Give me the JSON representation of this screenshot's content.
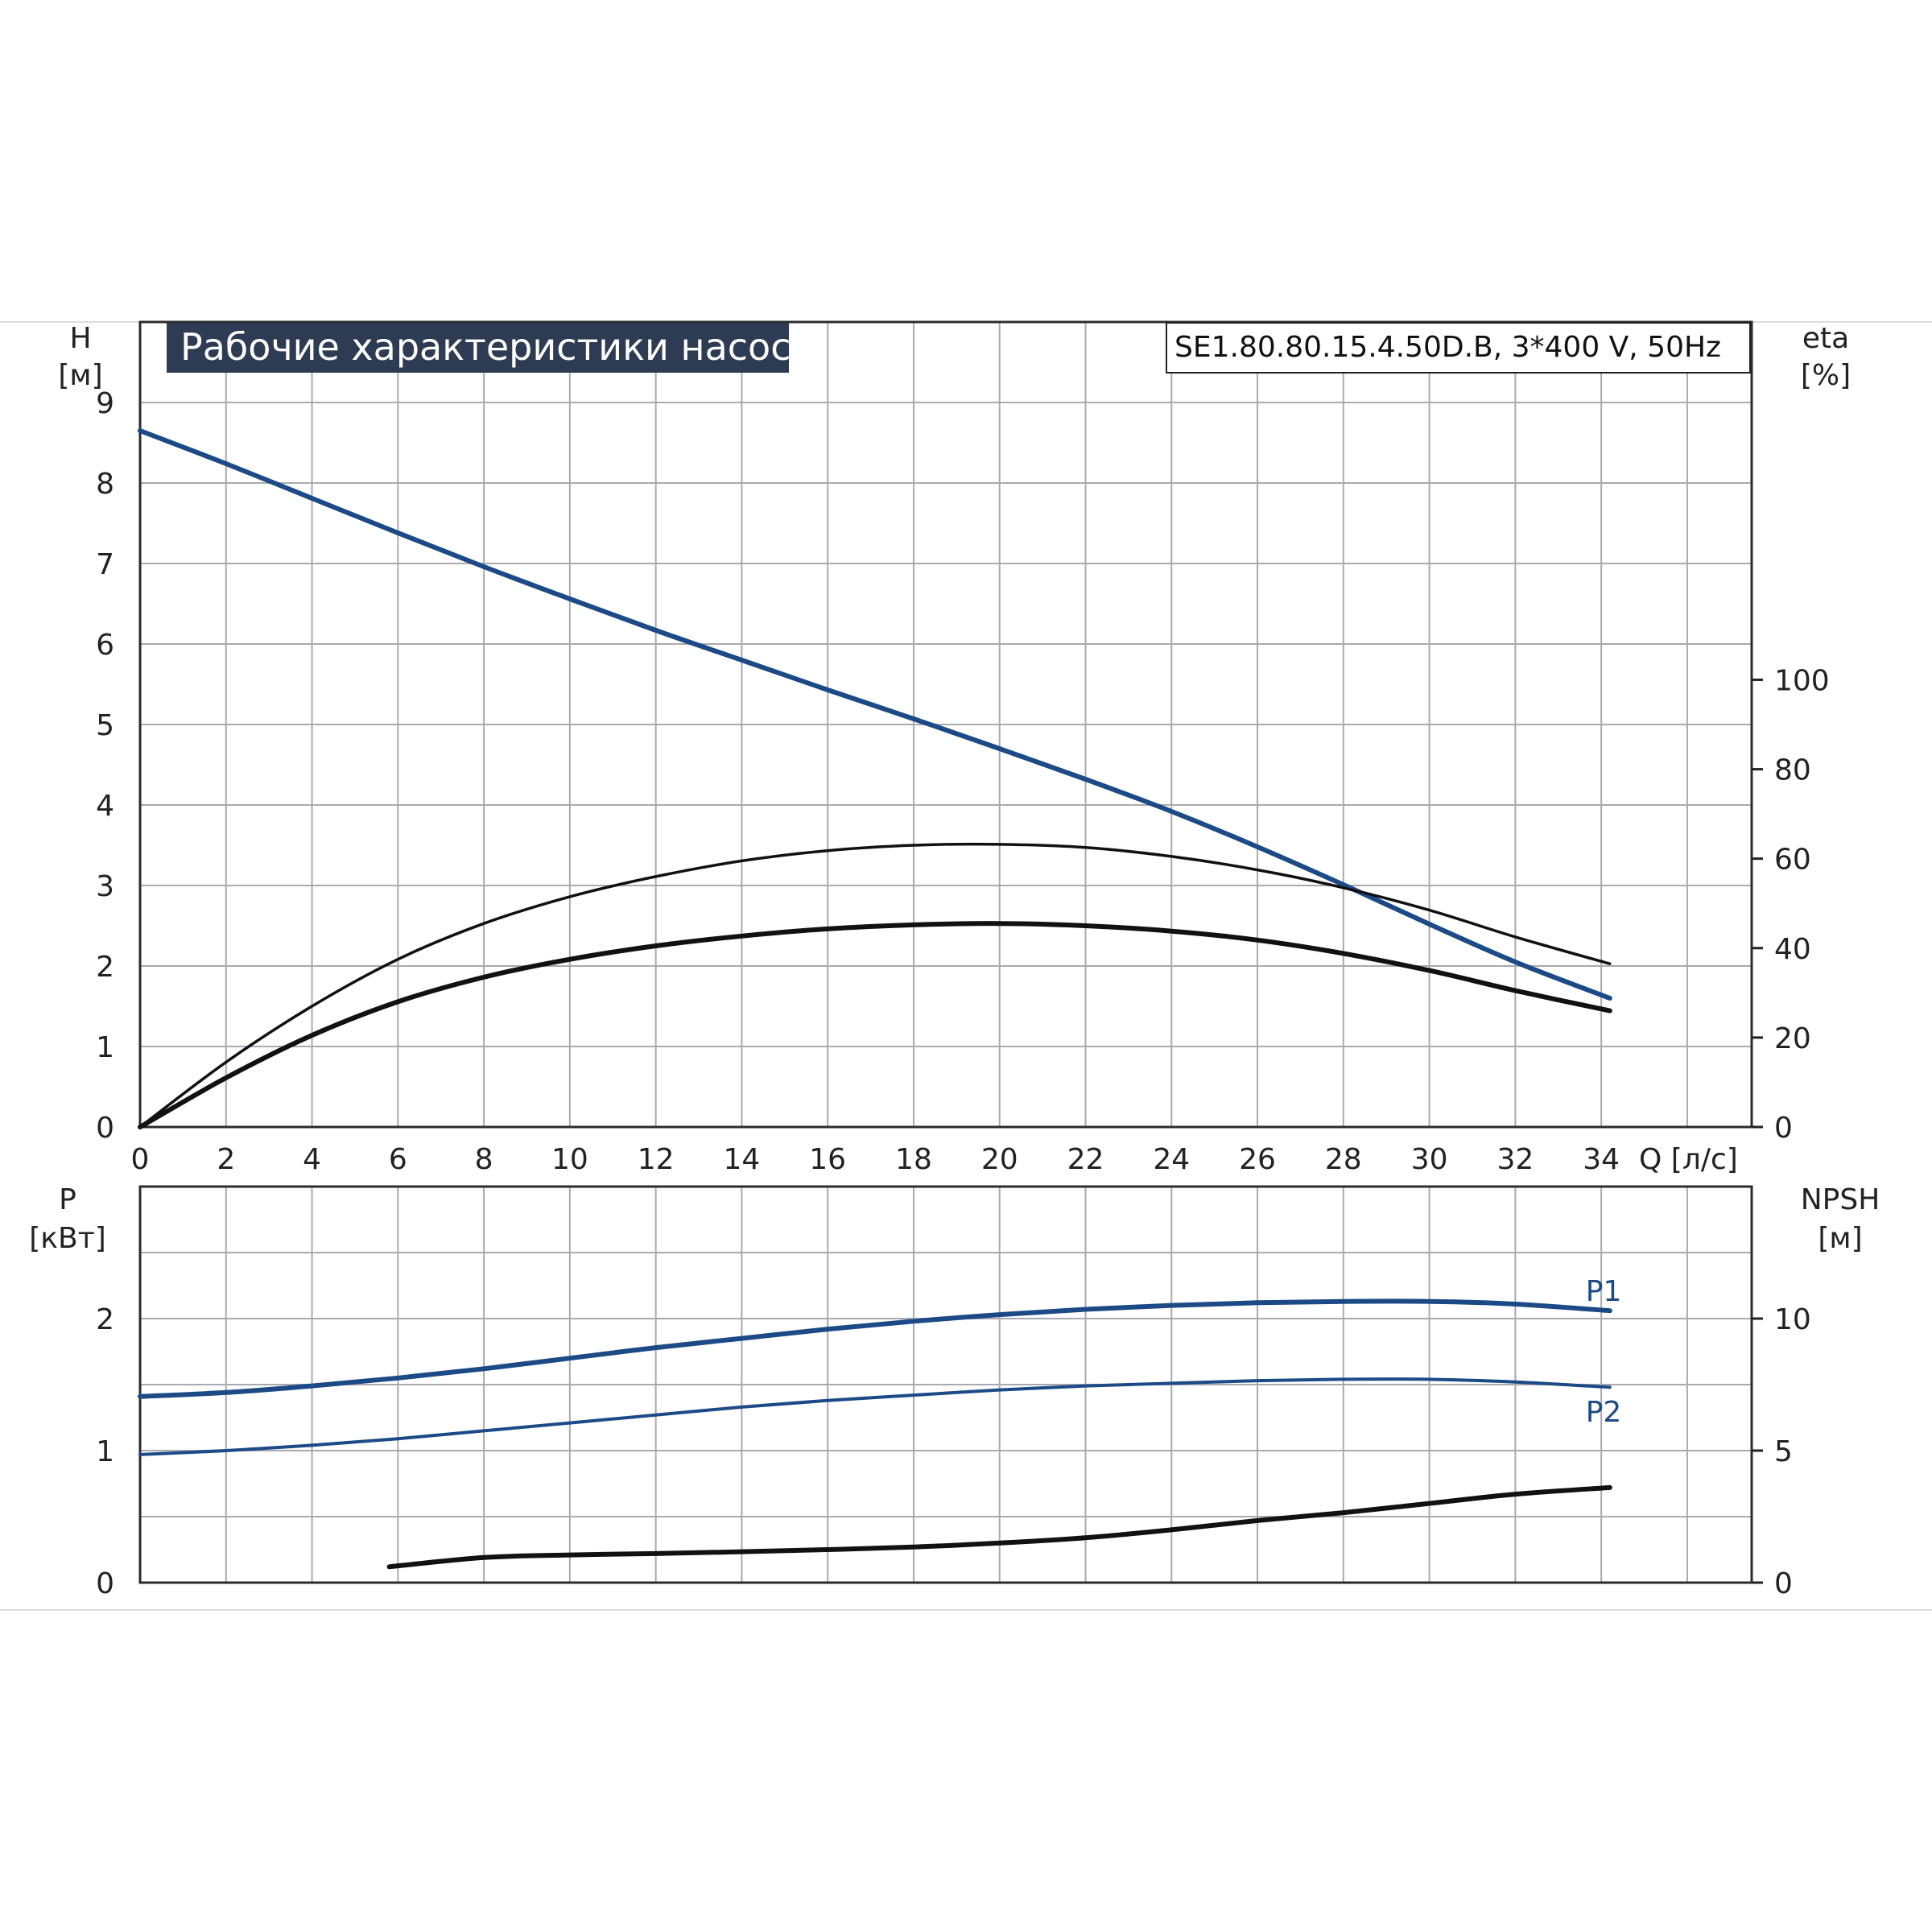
{
  "title": "Рабочие характеристики насоса",
  "model": "SE1.80.80.15.4.50D.B, 3*400 V, 50Hz",
  "colors": {
    "blue": "#1c4a86",
    "black": "#111111",
    "title_bg": "#2d3c52",
    "grid": "#a9a9b1"
  },
  "chart_data": [
    {
      "type": "line",
      "xlabel": "Q [л/с]",
      "ylabel_line1": "H",
      "ylabel_line2": "[м]",
      "y2label_line1": "eta",
      "y2label_line2": "[%]",
      "xlim": [
        0,
        37.5
      ],
      "ylim": [
        0,
        10
      ],
      "y2lim": [
        0,
        180
      ],
      "x_ticks": [
        "0",
        "2",
        "4",
        "6",
        "8",
        "10",
        "12",
        "14",
        "16",
        "18",
        "20",
        "22",
        "24",
        "26",
        "28",
        "30",
        "32",
        "34"
      ],
      "y_ticks": [
        "0",
        "1",
        "2",
        "3",
        "4",
        "5",
        "6",
        "7",
        "8",
        "9"
      ],
      "y2_ticks": [
        "0",
        "20",
        "40",
        "60",
        "80",
        "100"
      ],
      "grid": true,
      "series": [
        {
          "name": "",
          "axis": "y",
          "color": "#1c4a86",
          "width": 6,
          "x": [
            0,
            2,
            4,
            6,
            8,
            10,
            12,
            14,
            16,
            18,
            20,
            22,
            24,
            26,
            28,
            30,
            32,
            34.2
          ],
          "y": [
            8.65,
            8.24,
            7.81,
            7.38,
            6.96,
            6.56,
            6.17,
            5.8,
            5.43,
            5.07,
            4.7,
            4.32,
            3.92,
            3.48,
            3.01,
            2.52,
            2.05,
            1.6
          ]
        },
        {
          "name": "",
          "axis": "y2",
          "color": "#111111",
          "width": 3.5,
          "x": [
            0,
            2,
            4,
            6,
            8,
            10,
            12,
            14,
            16,
            18,
            20,
            22,
            24,
            26,
            28,
            30,
            32,
            34.2
          ],
          "y": [
            0,
            14.5,
            27,
            37.5,
            45.5,
            51.5,
            56,
            59.5,
            61.8,
            63,
            63.2,
            62.5,
            60.5,
            57.5,
            53.5,
            48.5,
            42.5,
            36.5
          ]
        },
        {
          "name": "",
          "axis": "y2",
          "color": "#111111",
          "width": 6,
          "x": [
            0,
            2,
            4,
            6,
            8,
            10,
            12,
            14,
            16,
            18,
            20,
            22,
            24,
            26,
            28,
            30,
            32,
            34.2
          ],
          "y": [
            0,
            11,
            20.5,
            28,
            33.5,
            37.5,
            40.5,
            42.7,
            44.3,
            45.2,
            45.5,
            45,
            43.8,
            41.8,
            38.8,
            35,
            30.5,
            26
          ]
        }
      ]
    },
    {
      "type": "line",
      "ylabel_line1": "P",
      "ylabel_line2": "[кВт]",
      "y2label_line1": "NPSH",
      "y2label_line2": "[м]",
      "xlim": [
        0,
        37.5
      ],
      "ylim": [
        0,
        3
      ],
      "y2lim": [
        0,
        15
      ],
      "y_ticks": [
        "0",
        "1",
        "2"
      ],
      "y2_ticks": [
        "0",
        "5",
        "10"
      ],
      "grid": true,
      "series": [
        {
          "name": "P1",
          "axis": "y",
          "color": "#1c4a86",
          "width": 6,
          "x": [
            0,
            2,
            4,
            6,
            8,
            10,
            12,
            14,
            16,
            18,
            20,
            22,
            24,
            26,
            28,
            30,
            32,
            34.2
          ],
          "y": [
            1.41,
            1.44,
            1.49,
            1.55,
            1.62,
            1.7,
            1.78,
            1.85,
            1.92,
            1.98,
            2.03,
            2.07,
            2.1,
            2.12,
            2.13,
            2.13,
            2.11,
            2.06
          ]
        },
        {
          "name": "P2",
          "axis": "y",
          "color": "#1c4a86",
          "width": 4,
          "x": [
            0,
            2,
            4,
            6,
            8,
            10,
            12,
            14,
            16,
            18,
            20,
            22,
            24,
            26,
            28,
            30,
            32,
            34.2
          ],
          "y": [
            0.97,
            1.0,
            1.04,
            1.09,
            1.15,
            1.21,
            1.27,
            1.33,
            1.38,
            1.42,
            1.46,
            1.49,
            1.51,
            1.53,
            1.54,
            1.54,
            1.52,
            1.48
          ]
        },
        {
          "name": "",
          "axis": "y2",
          "color": "#111111",
          "width": 6,
          "x": [
            5.8,
            8,
            10,
            12,
            14,
            16,
            18,
            20,
            22,
            24,
            26,
            28,
            30,
            32,
            34.2
          ],
          "y": [
            0.6,
            0.95,
            1.05,
            1.1,
            1.17,
            1.25,
            1.35,
            1.5,
            1.7,
            2.0,
            2.35,
            2.65,
            3.0,
            3.35,
            3.6
          ]
        }
      ]
    }
  ]
}
